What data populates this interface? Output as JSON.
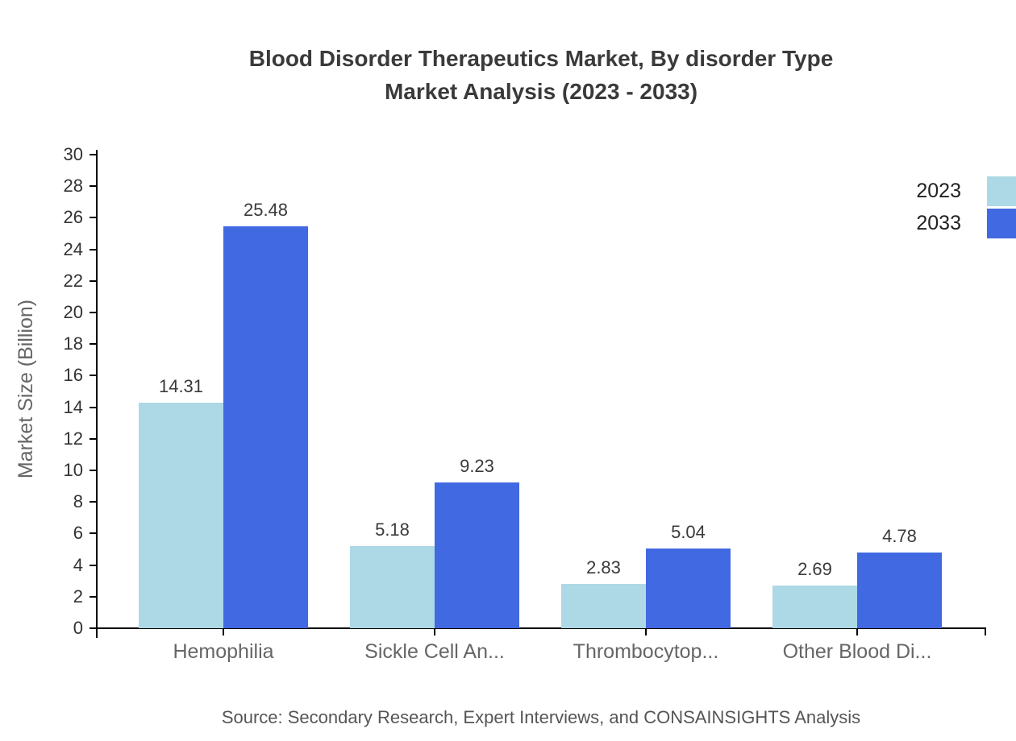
{
  "chart_data": {
    "type": "bar",
    "title_line1": "Blood Disorder Therapeutics Market, By disorder Type",
    "title_line2": "Market Analysis (2023 - 2033)",
    "ylabel": "Market Size (Billion)",
    "categories": [
      "Hemophilia",
      "Sickle Cell An...",
      "Thrombocytop...",
      "Other Blood Di..."
    ],
    "series": [
      {
        "name": "2023",
        "color": "#ADD8E6",
        "values": [
          14.31,
          5.18,
          2.83,
          2.69
        ]
      },
      {
        "name": "2033",
        "color": "#4169E1",
        "values": [
          25.48,
          9.23,
          5.04,
          4.78
        ]
      }
    ],
    "ylim": [
      0,
      30
    ],
    "ytick_step": 2,
    "grid": false,
    "legend_position": "top-right",
    "value_label_decimals": 2,
    "axis_color": "#000000",
    "tick_label_color": "#333333",
    "category_label_color": "#666666",
    "value_label_color": "#3a3a3a"
  },
  "source_text": "Source: Secondary Research, Expert Interviews, and CONSAINSIGHTS Analysis"
}
